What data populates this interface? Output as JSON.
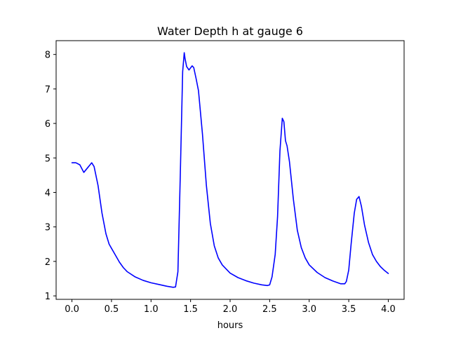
{
  "chart_data": {
    "type": "line",
    "title": "Water Depth h at gauge 6",
    "xlabel": "hours",
    "ylabel": "",
    "xlim": [
      -0.2,
      4.2
    ],
    "ylim": [
      0.9,
      8.4
    ],
    "xticks": [
      0.0,
      0.5,
      1.0,
      1.5,
      2.0,
      2.5,
      3.0,
      3.5,
      4.0
    ],
    "xtick_labels": [
      "0.0",
      "0.5",
      "1.0",
      "1.5",
      "2.0",
      "2.5",
      "3.0",
      "3.5",
      "4.0"
    ],
    "yticks": [
      1,
      2,
      3,
      4,
      5,
      6,
      7,
      8
    ],
    "ytick_labels": [
      "1",
      "2",
      "3",
      "4",
      "5",
      "6",
      "7",
      "8"
    ],
    "grid": false,
    "series": [
      {
        "color": "#0000ff",
        "x": [
          0.0,
          0.05,
          0.1,
          0.15,
          0.2,
          0.25,
          0.28,
          0.33,
          0.38,
          0.43,
          0.47,
          0.5,
          0.55,
          0.6,
          0.65,
          0.7,
          0.8,
          0.9,
          1.0,
          1.1,
          1.2,
          1.28,
          1.31,
          1.34,
          1.37,
          1.4,
          1.42,
          1.43,
          1.45,
          1.48,
          1.52,
          1.54,
          1.57,
          1.6,
          1.65,
          1.7,
          1.75,
          1.8,
          1.85,
          1.9,
          1.95,
          2.0,
          2.1,
          2.2,
          2.3,
          2.4,
          2.47,
          2.5,
          2.53,
          2.57,
          2.6,
          2.63,
          2.66,
          2.68,
          2.7,
          2.72,
          2.75,
          2.8,
          2.85,
          2.9,
          2.95,
          3.0,
          3.1,
          3.2,
          3.3,
          3.4,
          3.45,
          3.47,
          3.5,
          3.53,
          3.57,
          3.6,
          3.63,
          3.66,
          3.7,
          3.75,
          3.8,
          3.85,
          3.9,
          3.95,
          4.0
        ],
        "y": [
          4.86,
          4.86,
          4.8,
          4.58,
          4.72,
          4.86,
          4.75,
          4.2,
          3.4,
          2.8,
          2.5,
          2.38,
          2.18,
          1.98,
          1.82,
          1.7,
          1.55,
          1.45,
          1.38,
          1.33,
          1.28,
          1.25,
          1.26,
          1.7,
          4.5,
          7.5,
          8.05,
          7.88,
          7.65,
          7.55,
          7.67,
          7.62,
          7.3,
          6.95,
          5.7,
          4.2,
          3.1,
          2.45,
          2.1,
          1.9,
          1.78,
          1.66,
          1.53,
          1.44,
          1.37,
          1.32,
          1.3,
          1.32,
          1.55,
          2.2,
          3.3,
          5.2,
          6.15,
          6.05,
          5.5,
          5.35,
          4.9,
          3.8,
          2.9,
          2.4,
          2.1,
          1.9,
          1.68,
          1.53,
          1.43,
          1.35,
          1.35,
          1.42,
          1.75,
          2.5,
          3.4,
          3.8,
          3.88,
          3.6,
          3.05,
          2.55,
          2.2,
          2.0,
          1.85,
          1.74,
          1.65
        ]
      }
    ]
  }
}
